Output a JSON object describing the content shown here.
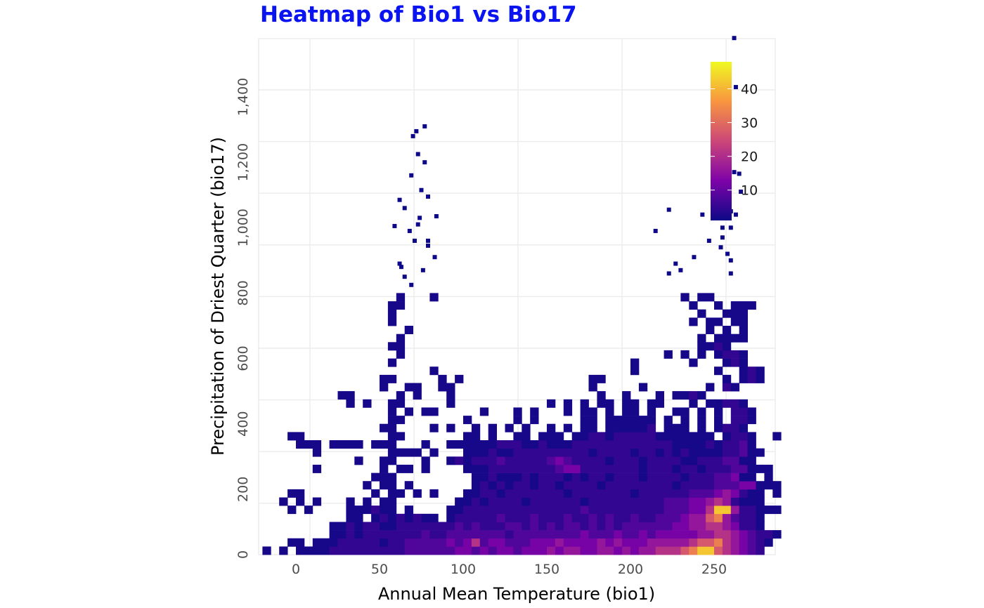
{
  "chart_data": {
    "type": "heatmap",
    "title": "Heatmap of Bio1 vs Bio17",
    "xlabel": "Annual Mean Temperature (bio1)",
    "ylabel": "Precipitation of Driest Quarter (bio17)",
    "xlim": [
      -22,
      286
    ],
    "ylim": [
      0,
      1578
    ],
    "x_ticks": [
      0,
      50,
      100,
      150,
      200,
      250
    ],
    "x_tick_labels": [
      "0",
      "50",
      "100",
      "150",
      "200",
      "250"
    ],
    "y_ticks": [
      0,
      200,
      400,
      600,
      800,
      1000,
      1200,
      1400
    ],
    "y_tick_labels": [
      "0",
      "200",
      "400",
      "600",
      "800",
      "1,000",
      "1,200",
      "1,400"
    ],
    "grid": true,
    "colorscale": "plasma",
    "colorbar": {
      "range": [
        1,
        48
      ],
      "ticks": [
        10,
        20,
        30,
        40
      ],
      "tick_labels": [
        "10",
        "20",
        "30",
        "40"
      ],
      "placement": "top-right inside"
    },
    "binning": {
      "x_start": -20,
      "x_width": 5,
      "y_start": 0,
      "y_width": 25
    },
    "count_levels": {
      "1": 2,
      "2": 5,
      "3": 8,
      "4": 12,
      "5": 16,
      "6": 21,
      "7": 27,
      "8": 33,
      "9": 42
    },
    "rows_bottom_to_top": [
      "1.1.1111222222222333333443434434445455445545455666789976543 2",
      "...11.111222221223333343463443334445444454544455555677865432 1",
      "........11212222222322333333323333333343334334344444556654322 1",
      "........1121221122222223232223323232332323233333344556654221 .",
      "..........11.12121211.12222232223222322323223223334557853221 .",
      "...1.1....111211.1....1122222222222222322222222233344699522111",
      "..1.1.1...1.1.11.......1121222212222221222222222333445652111 .",
      "...11........1.11.1.1...1122122222221222222212222223334542 11.1",
      "............1.11.1.......12121221221222212222222212222333441 11..",
      ".............111.........11211121222121221222122221222334 11.1.",
      "......1.......1.11.1....1112222222234422222221222122122233111..",
      "...........1..11...1..121222322222343222212221222211222331 1...",
      "......1........1111.1...11121122222222212222122121211112231 1...",
      "....111.1111.111...1..1111112221121112222222222221111212231....",
      "...11..........11.......11.1..11.111.112212222211111 11.1221..1.",
      "..............11....1.1..1.1.1.1..1.1.11.111112.111.1.1221....",
      "...............11.......1.....1.1.....11.111111.1.1.1.1.221....",
      "...............1.1.11.....1...1.1...1.11.1.11.1..11.1.1.221....",
      "..........1.1..11.....1...........1.1.1.11.11.11...1.11221....",
      ".........11.....1.1...1.................1..1...1.1121....",
      "..............1..11..11................1.....1.......1.21....",
      "..............11.....1.1...............11..............1.121....",
      "....................1.......................1.........1..121....",
      "...............1............................1......1...121....",
      "................1...............................1.1.1.1221....",
      "...............11...................................1121....",
      "................1...................................1.1111....",
      ".................1...................................1.1.1....",
      "...............1...................................1.11.11....",
      "...............1....................................1..111....",
      "...............11..................................1..1.111....",
      "................1...1.............................1.11...."
    ],
    "outliers": [
      [
        77,
        1310
      ],
      [
        72,
        1295
      ],
      [
        70,
        1280
      ],
      [
        73,
        1225
      ],
      [
        69,
        1160
      ],
      [
        77,
        1200
      ],
      [
        75,
        1115
      ],
      [
        79,
        1095
      ],
      [
        74,
        1030
      ],
      [
        73,
        1010
      ],
      [
        79,
        960
      ],
      [
        84,
        1035
      ],
      [
        59,
        1005
      ],
      [
        62,
        1085
      ],
      [
        65,
        1060
      ],
      [
        68,
        990
      ],
      [
        71,
        960
      ],
      [
        65,
        850
      ],
      [
        69,
        825
      ],
      [
        62,
        890
      ],
      [
        63,
        880
      ],
      [
        76,
        870
      ],
      [
        79,
        945
      ],
      [
        83,
        910
      ],
      [
        262,
        1580
      ],
      [
        263,
        1430
      ],
      [
        258,
        1430
      ],
      [
        254,
        1300
      ],
      [
        258,
        1280
      ],
      [
        262,
        1170
      ],
      [
        265,
        1165
      ],
      [
        266,
        1110
      ],
      [
        260,
        1000
      ],
      [
        260,
        1050
      ],
      [
        263,
        1040
      ],
      [
        255,
        1000
      ],
      [
        243,
        1040
      ],
      [
        223,
        1055
      ],
      [
        215,
        990
      ],
      [
        255,
        970
      ],
      [
        247,
        960
      ],
      [
        238,
        910
      ],
      [
        227,
        890
      ],
      [
        230,
        870
      ],
      [
        223,
        860
      ],
      [
        254,
        940
      ],
      [
        258,
        920
      ],
      [
        260,
        900
      ],
      [
        260,
        860
      ]
    ],
    "outlier_count": 1
  }
}
